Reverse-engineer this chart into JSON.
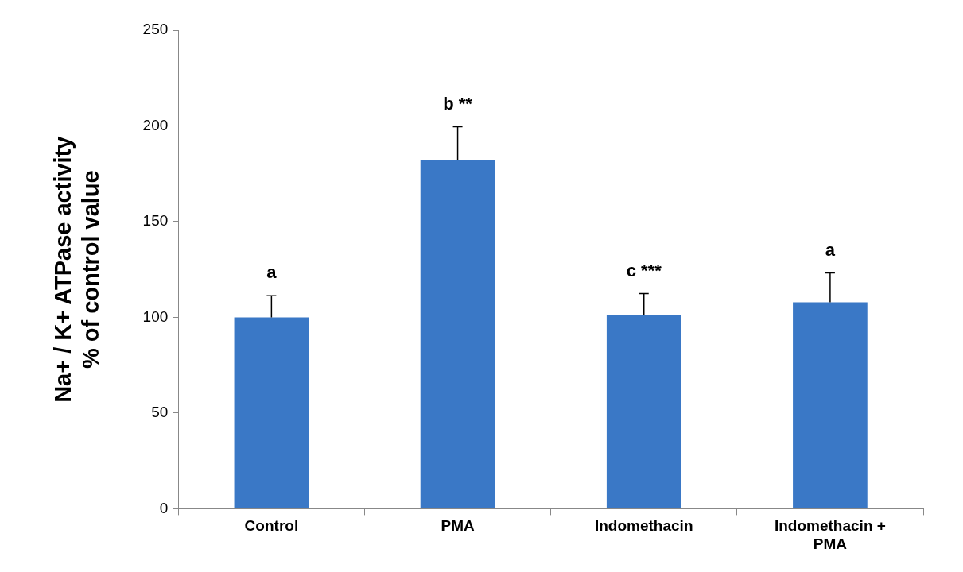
{
  "chart_data": {
    "type": "bar",
    "ylabel": "Na+ / K+ ATPase activity % of control value",
    "categories": [
      "Control",
      "PMA",
      "Indomethacin",
      "Indomethacin + PMA"
    ],
    "values": [
      100,
      182.4,
      101.1,
      107.9
    ],
    "color": "#3a78c6",
    "errors": [
      [
        100,
        111.3
      ],
      [
        182.4,
        199.6
      ],
      [
        101.1,
        112.4
      ],
      [
        107.9,
        123.2
      ]
    ],
    "ylim": [
      0,
      250
    ],
    "yticks": [
      0,
      50,
      100,
      150,
      200,
      250
    ],
    "grid": false,
    "legend": false,
    "annotations": [
      "a",
      "b **",
      "c ***",
      "a"
    ]
  }
}
